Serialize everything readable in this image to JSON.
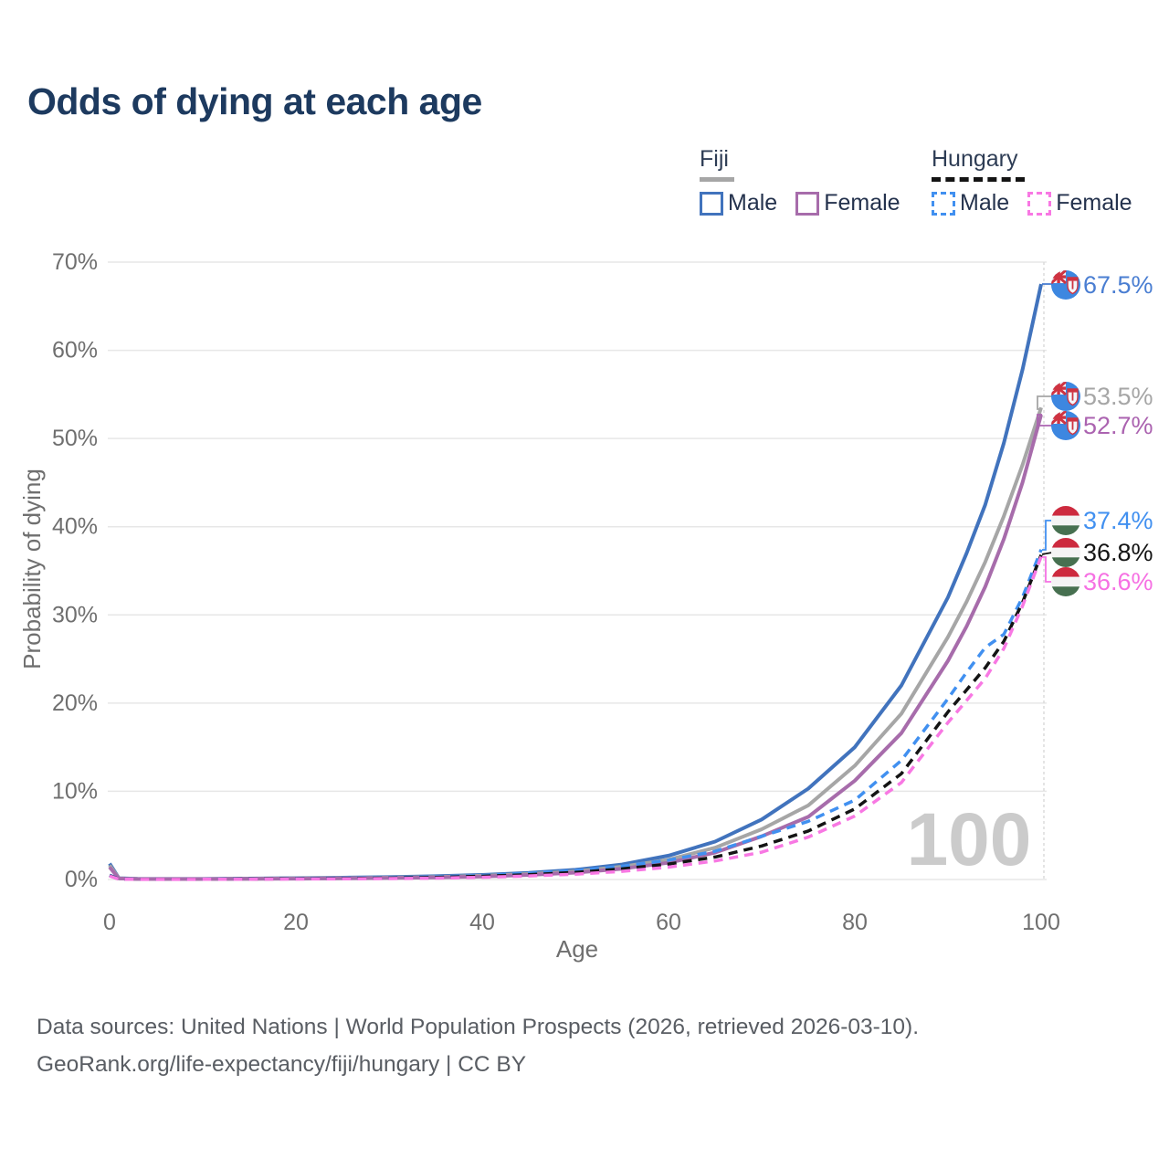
{
  "chart_data": {
    "type": "line",
    "title": "Odds of dying at each age",
    "xlabel": "Age",
    "ylabel": "Probability of dying",
    "xlim": [
      0,
      100
    ],
    "ylim": [
      0,
      70
    ],
    "x_tick_labels": [
      "0",
      "20",
      "40",
      "60",
      "80",
      "100"
    ],
    "x_tick_values": [
      0,
      20,
      40,
      60,
      80,
      100
    ],
    "y_tick_labels": [
      "0%",
      "10%",
      "20%",
      "30%",
      "40%",
      "50%",
      "60%",
      "70%"
    ],
    "y_tick_values": [
      0,
      10,
      20,
      30,
      40,
      50,
      60,
      70
    ],
    "grid": "horizontal",
    "hover_age_label": "100",
    "ages": [
      0,
      1,
      3,
      5,
      10,
      15,
      20,
      25,
      30,
      35,
      40,
      45,
      50,
      55,
      60,
      65,
      70,
      75,
      80,
      85,
      90,
      92,
      94,
      96,
      98,
      100
    ],
    "series": [
      {
        "name": "Fiji Male",
        "country": "Fiji",
        "sex": "Male",
        "flag": "fiji",
        "line_style": "solid",
        "color": "#4173bd",
        "end_label": "67.5%",
        "end_value": 67.5,
        "end_label_color": "#4a7ed2",
        "values": [
          1.8,
          0.15,
          0.07,
          0.06,
          0.06,
          0.1,
          0.16,
          0.21,
          0.27,
          0.37,
          0.52,
          0.75,
          1.1,
          1.7,
          2.7,
          4.3,
          6.8,
          10.3,
          15.0,
          22.0,
          32.0,
          37.0,
          42.5,
          49.5,
          57.8,
          67.5
        ]
      },
      {
        "name": "Fiji Both sexes",
        "country": "Fiji",
        "sex": "Both",
        "flag": "fiji",
        "line_style": "solid",
        "color": "#a6a6a6",
        "end_label": "53.5%",
        "end_value": 53.5,
        "end_label_color": "#a6a6a6",
        "values": [
          1.6,
          0.13,
          0.06,
          0.05,
          0.05,
          0.08,
          0.12,
          0.16,
          0.21,
          0.29,
          0.42,
          0.62,
          0.92,
          1.45,
          2.25,
          3.6,
          5.7,
          8.4,
          12.9,
          18.8,
          27.5,
          31.5,
          36.0,
          41.2,
          47.0,
          53.5
        ]
      },
      {
        "name": "Fiji Female",
        "country": "Fiji",
        "sex": "Female",
        "flag": "fiji",
        "line_style": "solid",
        "color": "#a76cab",
        "end_label": "52.7%",
        "end_value": 52.7,
        "end_label_color": "#ab63b0",
        "values": [
          1.4,
          0.11,
          0.05,
          0.05,
          0.05,
          0.07,
          0.09,
          0.12,
          0.17,
          0.24,
          0.34,
          0.52,
          0.78,
          1.22,
          1.9,
          3.05,
          4.9,
          7.1,
          11.2,
          16.6,
          24.8,
          28.7,
          33.2,
          38.6,
          45.0,
          52.7
        ]
      },
      {
        "name": "Hungary Male",
        "country": "Hungary",
        "sex": "Male",
        "flag": "hungary",
        "line_style": "dashed",
        "color": "#4190f0",
        "end_label": "37.4%",
        "end_value": 37.4,
        "end_label_color": "#4190f0",
        "values": [
          0.5,
          0.05,
          0.03,
          0.02,
          0.03,
          0.06,
          0.1,
          0.14,
          0.2,
          0.3,
          0.45,
          0.7,
          1.0,
          1.5,
          2.2,
          3.2,
          4.9,
          6.6,
          9.0,
          13.5,
          20.5,
          23.5,
          26.3,
          27.8,
          32.0,
          37.4
        ]
      },
      {
        "name": "Hungary Both sexes",
        "country": "Hungary",
        "sex": "Both",
        "flag": "hungary",
        "line_style": "dashed",
        "color": "#141414",
        "end_label": "36.8%",
        "end_value": 36.8,
        "end_label_color": "#141414",
        "values": [
          0.45,
          0.04,
          0.025,
          0.018,
          0.025,
          0.05,
          0.08,
          0.11,
          0.16,
          0.24,
          0.36,
          0.55,
          0.8,
          1.2,
          1.75,
          2.55,
          3.8,
          5.5,
          8.0,
          12.0,
          19.0,
          21.5,
          24.0,
          27.0,
          31.4,
          36.8
        ]
      },
      {
        "name": "Hungary Female",
        "country": "Hungary",
        "sex": "Female",
        "flag": "hungary",
        "line_style": "dashed",
        "color": "#f878e3",
        "end_label": "36.6%",
        "end_value": 36.6,
        "end_label_color": "#f671e3",
        "values": [
          0.4,
          0.035,
          0.02,
          0.015,
          0.02,
          0.035,
          0.05,
          0.07,
          0.1,
          0.16,
          0.25,
          0.4,
          0.6,
          0.92,
          1.4,
          2.1,
          3.1,
          4.8,
          7.2,
          11.0,
          17.8,
          20.3,
          22.8,
          26.2,
          31.0,
          36.6
        ]
      }
    ],
    "flag_colors": {
      "fiji_blue": "#3d87e0",
      "fiji_white": "#f4f6fa",
      "fiji_red": "#cf3341",
      "hungary_red": "#cd2a3e",
      "hungary_white": "#f4f4f4",
      "hungary_green": "#477050"
    }
  },
  "legend": {
    "groups": [
      {
        "name": "Fiji",
        "items": [
          {
            "label": "Male"
          },
          {
            "label": "Female"
          }
        ]
      },
      {
        "name": "Hungary",
        "items": [
          {
            "label": "Male"
          },
          {
            "label": "Female"
          }
        ]
      }
    ]
  },
  "footer": {
    "line1": "Data sources: United Nations | World Population Prospects (2026, retrieved 2026-03-10).",
    "line2": "GeoRank.org/life-expectancy/fiji/hungary | CC BY"
  }
}
